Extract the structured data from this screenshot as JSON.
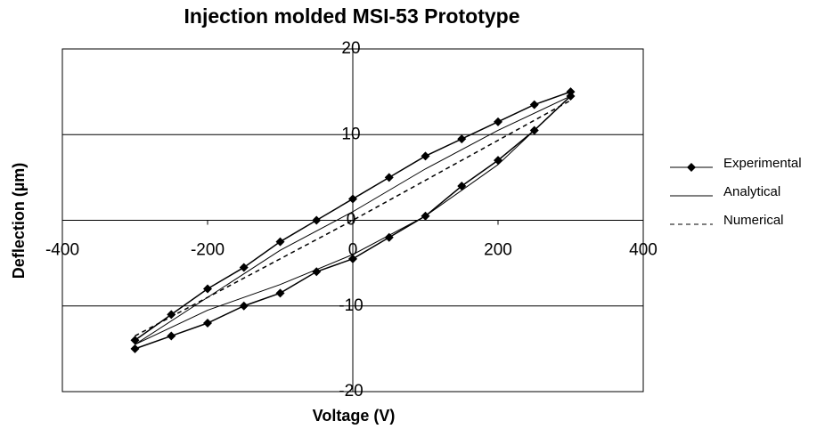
{
  "chart_data": {
    "type": "line",
    "title": "Injection molded MSI-53 Prototype",
    "xlabel": "Voltage (V)",
    "ylabel": "Deflection (µm)",
    "xlim": [
      -400,
      400
    ],
    "xticks": [
      -400,
      -200,
      0,
      200,
      400
    ],
    "ylim": [
      -20,
      20
    ],
    "yticks": [
      20,
      10,
      0,
      -10,
      -20
    ],
    "grid": true,
    "legend": "right",
    "series": [
      {
        "name": "Experimental",
        "color": "#000000",
        "style": "solid-marker",
        "x": [
          -300,
          -250,
          -200,
          -150,
          -100,
          -50,
          0,
          50,
          100,
          150,
          200,
          250,
          300,
          300,
          250,
          200,
          150,
          100,
          50,
          0,
          -50,
          -100,
          -150,
          -200,
          -250,
          -300
        ],
        "values": [
          -15,
          -13.5,
          -12,
          -10,
          -8.5,
          -6,
          -4.5,
          -2,
          0.5,
          4,
          7,
          10.5,
          14.5,
          15,
          13.5,
          11.5,
          9.5,
          7.5,
          5,
          2.5,
          0,
          -2.5,
          -5.5,
          -8,
          -11,
          -14
        ]
      },
      {
        "name": "Analytical",
        "color": "#000000",
        "style": "solid",
        "x": [
          -300,
          -200,
          -100,
          0,
          100,
          200,
          300,
          200,
          100,
          0,
          -100,
          -200,
          -300
        ],
        "values": [
          -14.5,
          -10.5,
          -7.5,
          -4,
          0.5,
          6.5,
          14.5,
          10.5,
          6,
          1,
          -3.5,
          -9,
          -14.5
        ]
      },
      {
        "name": "Numerical",
        "color": "#000000",
        "style": "dashed",
        "x": [
          -300,
          0,
          300
        ],
        "values": [
          -13.5,
          0,
          14
        ]
      }
    ]
  }
}
